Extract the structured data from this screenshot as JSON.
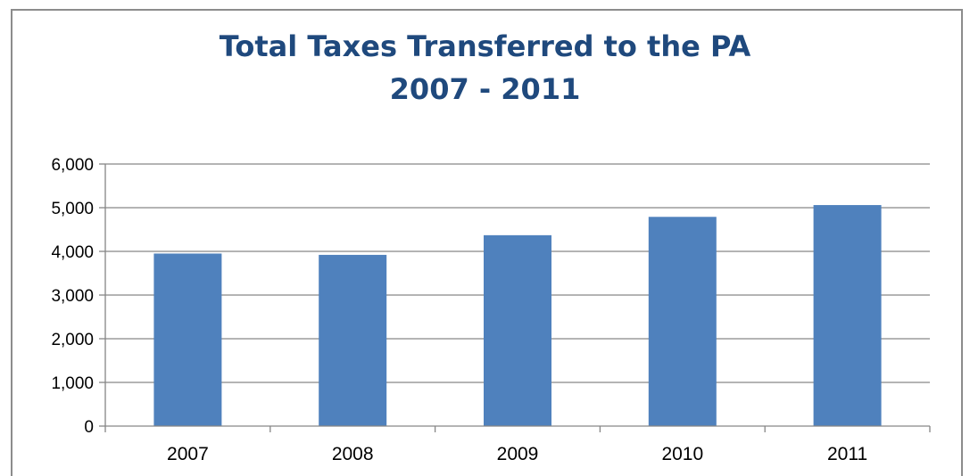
{
  "chart_data": {
    "type": "bar",
    "title": "Total Taxes Transferred to the PA",
    "subtitle": "2007 - 2011",
    "xlabel": "",
    "ylabel": "",
    "categories": [
      "2007",
      "2008",
      "2009",
      "2010",
      "2011"
    ],
    "values": [
      3950,
      3920,
      4370,
      4790,
      5060
    ],
    "ylim": [
      0,
      6000
    ],
    "yticks": [
      0,
      1000,
      2000,
      3000,
      4000,
      5000,
      6000
    ],
    "ytick_labels": [
      "0",
      "1,000",
      "2,000",
      "3,000",
      "4,000",
      "5,000",
      "6,000"
    ],
    "grid": true,
    "legend": "none",
    "colors": {
      "bar": "#4f81bd",
      "title": "#1f497d",
      "grid": "#868686",
      "frame": "#8c8c8c"
    }
  }
}
